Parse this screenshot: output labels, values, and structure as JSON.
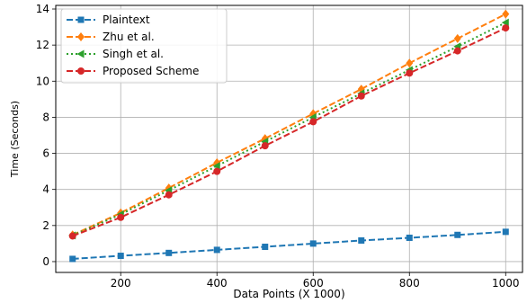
{
  "chart_data": {
    "type": "line",
    "xlabel": "Data Points (X 1000)",
    "ylabel": "Time (Seconds)",
    "xlim": [
      65,
      1035
    ],
    "ylim": [
      -0.6,
      14.2
    ],
    "xticks": [
      200,
      400,
      600,
      800,
      1000
    ],
    "yticks": [
      0,
      2,
      4,
      6,
      8,
      10,
      12,
      14
    ],
    "grid": true,
    "legend_position": "top-left",
    "x": [
      100,
      200,
      300,
      400,
      500,
      600,
      700,
      800,
      900,
      1000
    ],
    "series": [
      {
        "name": "Plaintext",
        "color": "#1f77b4",
        "linestyle": "dashed",
        "marker": "square",
        "values": [
          0.15,
          0.32,
          0.48,
          0.65,
          0.82,
          1.0,
          1.17,
          1.32,
          1.48,
          1.65
        ]
      },
      {
        "name": "Zhu et al.",
        "color": "#ff7f0e",
        "linestyle": "dashed",
        "marker": "diamond",
        "values": [
          1.48,
          2.7,
          4.08,
          5.48,
          6.82,
          8.2,
          9.56,
          11.0,
          12.36,
          13.72
        ]
      },
      {
        "name": "Singh et al.",
        "color": "#2ca02c",
        "linestyle": "dotted",
        "marker": "triangle-left",
        "values": [
          1.45,
          2.62,
          3.95,
          5.3,
          6.65,
          8.0,
          9.32,
          10.62,
          11.92,
          13.25
        ]
      },
      {
        "name": "Proposed Scheme",
        "color": "#d62728",
        "linestyle": "dashed",
        "marker": "circle",
        "values": [
          1.42,
          2.45,
          3.7,
          5.0,
          6.42,
          7.75,
          9.18,
          10.45,
          11.68,
          12.95
        ]
      }
    ]
  }
}
